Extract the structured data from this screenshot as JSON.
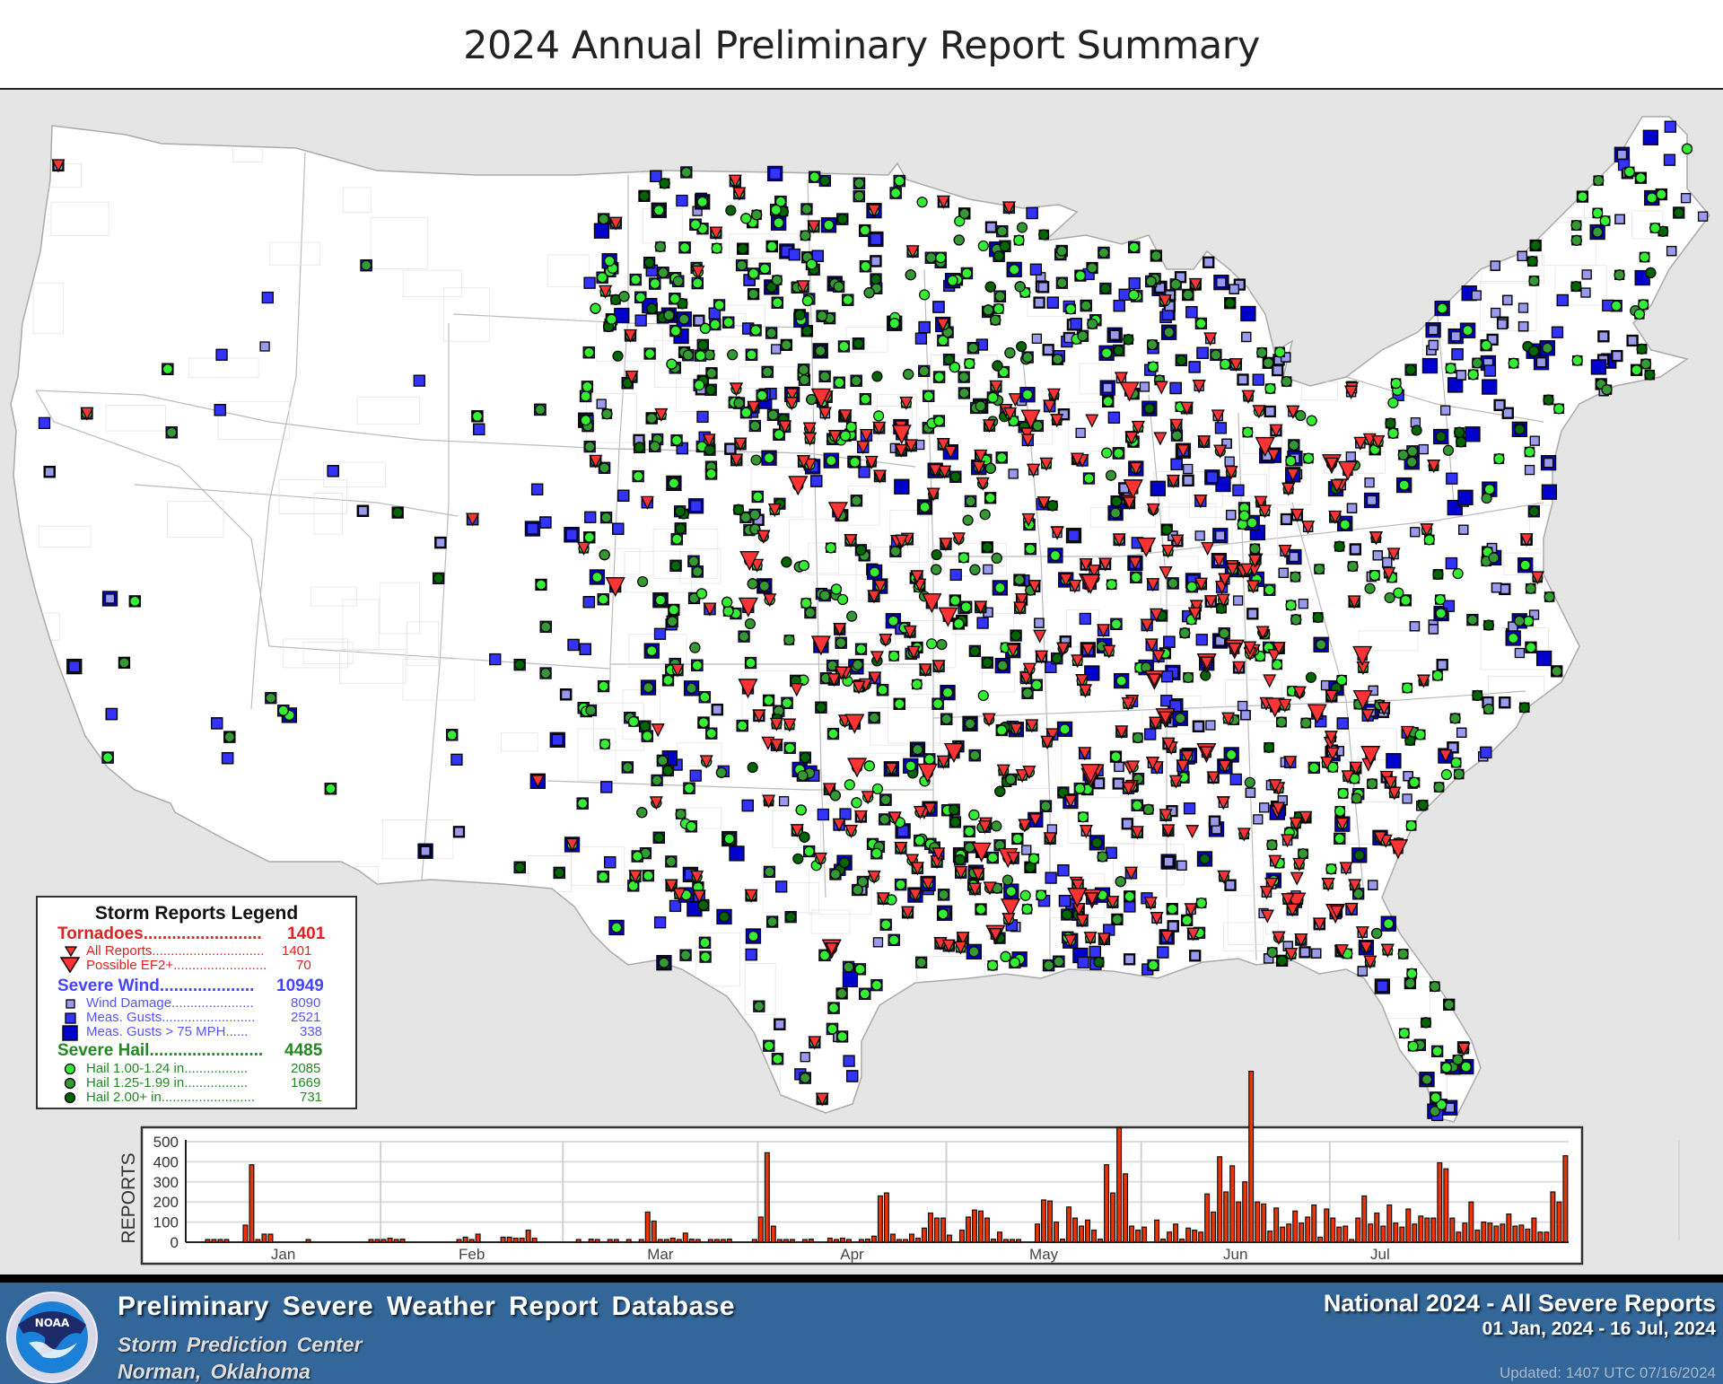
{
  "title": "2024 Annual Preliminary Report Summary",
  "colors": {
    "tornado": "#ff3333",
    "wind_damage": "#9999ee",
    "meas_gusts": "#3333ff",
    "meas_gusts_75": "#0000cc",
    "hail_small": "#33ee33",
    "hail_mid": "#339933",
    "hail_large": "#006600",
    "legend_tornado_text": "#dd2222",
    "legend_wind_text": "#4444ff",
    "legend_hail_text": "#228822",
    "bar_fill": "#ee3300",
    "footer_bg": "#336699",
    "map_bg": "#e5e5e5"
  },
  "legend": {
    "title": "Storm Reports Legend",
    "groups": [
      {
        "label": "Tornadoes.........................",
        "total": "1401",
        "items": [
          {
            "label": "All Reports..............................",
            "value": "1401",
            "icon": "small-triangle-icon"
          },
          {
            "label": "Possible EF2+.........................",
            "value": "70",
            "icon": "large-triangle-icon"
          }
        ]
      },
      {
        "label": "Severe Wind....................",
        "total": "10949",
        "items": [
          {
            "label": "Wind Damage......................",
            "value": "8090",
            "icon": "small-square-icon"
          },
          {
            "label": "Meas. Gusts.........................",
            "value": "2521",
            "icon": "medium-square-icon"
          },
          {
            "label": "Meas. Gusts > 75 MPH......",
            "value": "338",
            "icon": "large-square-icon"
          }
        ]
      },
      {
        "label": "Severe Hail........................",
        "total": "4485",
        "items": [
          {
            "label": "Hail 1.00-1.24 in.................",
            "value": "2085",
            "icon": "light-green-circle-icon"
          },
          {
            "label": "Hail 1.25-1.99 in.................",
            "value": "1669",
            "icon": "green-circle-icon"
          },
          {
            "label": "Hail 2.00+ in.........................",
            "value": "731",
            "icon": "dark-green-circle-icon"
          }
        ]
      }
    ]
  },
  "chart_data": {
    "type": "bar",
    "title": "",
    "xlabel": "",
    "ylabel": "REPORTS",
    "ylim": [
      0,
      500
    ],
    "yticks": [
      0,
      100,
      200,
      300,
      400,
      500
    ],
    "grid": true,
    "month_labels": [
      "Jan",
      "Feb",
      "Mar",
      "Apr",
      "May",
      "Jun",
      "Jul"
    ],
    "start_date": "01 Jan 2024",
    "end_date": "16 Jul 2024",
    "daily_values": [
      0,
      0,
      0,
      5,
      5,
      5,
      5,
      0,
      0,
      85,
      385,
      5,
      40,
      40,
      0,
      0,
      0,
      0,
      0,
      5,
      0,
      0,
      0,
      0,
      0,
      0,
      0,
      0,
      0,
      5,
      5,
      5,
      20,
      5,
      15,
      0,
      0,
      0,
      0,
      0,
      0,
      0,
      0,
      5,
      25,
      5,
      40,
      0,
      0,
      0,
      25,
      25,
      20,
      20,
      60,
      20,
      0,
      0,
      0,
      0,
      0,
      0,
      5,
      0,
      15,
      5,
      0,
      5,
      5,
      0,
      5,
      0,
      5,
      150,
      105,
      5,
      5,
      20,
      5,
      45,
      15,
      5,
      0,
      5,
      10,
      5,
      15,
      0,
      0,
      0,
      5,
      125,
      445,
      80,
      5,
      5,
      5,
      0,
      5,
      15,
      0,
      0,
      20,
      10,
      20,
      5,
      0,
      5,
      15,
      30,
      230,
      245,
      40,
      5,
      10,
      40,
      20,
      70,
      145,
      120,
      120,
      35,
      0,
      60,
      125,
      160,
      155,
      120,
      15,
      50,
      5,
      5,
      10,
      0,
      0,
      90,
      210,
      205,
      100,
      15,
      175,
      120,
      80,
      110,
      60,
      15,
      385,
      245,
      570,
      340,
      80,
      60,
      75,
      0,
      110,
      15,
      50,
      90,
      15,
      70,
      60,
      50,
      240,
      150,
      425,
      250,
      380,
      200,
      300,
      850,
      200,
      190,
      55,
      170,
      75,
      90,
      155,
      95,
      125,
      185,
      25,
      165,
      120,
      75,
      80,
      10,
      120,
      230,
      90,
      145,
      80,
      185,
      95,
      75,
      165,
      90,
      130,
      120,
      120,
      395,
      365,
      120,
      50,
      95,
      200,
      60,
      100,
      95,
      80,
      90,
      140,
      80,
      85,
      65,
      120,
      50,
      50,
      250,
      200,
      430
    ]
  },
  "footer": {
    "title": "Preliminary  Severe  Weather  Report  Database",
    "org": "Storm  Prediction  Center",
    "location": "Norman, Oklahoma",
    "scope": "National  2024 - All Severe Reports",
    "date_range": "01 Jan, 2024 - 16 Jul, 2024",
    "updated": "Updated: 1407 UTC 07/16/2024",
    "logo_text": "NOAA"
  }
}
